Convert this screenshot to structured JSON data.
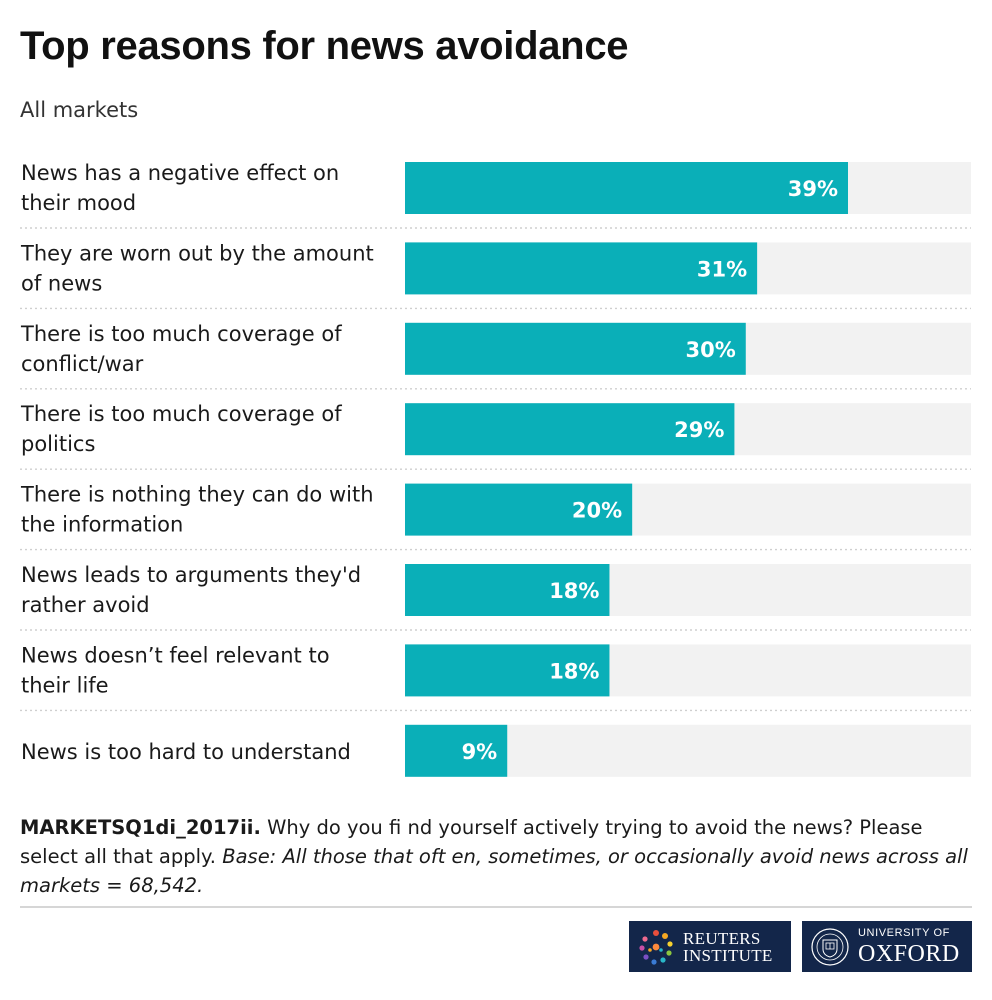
{
  "header": {
    "title": "Top reasons for news avoidance",
    "subtitle": "All markets"
  },
  "chart_data": {
    "type": "bar",
    "orientation": "horizontal",
    "categories": [
      "News has a negative effect on their mood",
      "They are worn out by the amount of news",
      "There is too much coverage of conflict/war",
      "There is too much coverage of politics",
      "There is nothing they can do with the information",
      "News leads to arguments they'd rather avoid",
      "News doesn’t feel relevant to their life",
      "News is too hard to understand"
    ],
    "label_lines": [
      [
        "News has a negative effect on",
        "their mood"
      ],
      [
        "They are worn out by the amount",
        "of news"
      ],
      [
        "There is too much coverage of",
        "conflict/war"
      ],
      [
        "There is too much coverage of",
        "politics"
      ],
      [
        "There is nothing they can do with",
        "the information"
      ],
      [
        "News leads to arguments they'd",
        "rather avoid"
      ],
      [
        "News doesn’t feel relevant to",
        "their life"
      ],
      [
        "News is too hard to understand"
      ]
    ],
    "values": [
      39,
      31,
      30,
      29,
      20,
      18,
      18,
      9
    ],
    "value_labels": [
      "39%",
      "31%",
      "30%",
      "29%",
      "20%",
      "18%",
      "18%",
      "9%"
    ],
    "xlim": [
      0,
      50
    ],
    "bar_color": "#0aafb8",
    "track_color": "#f2f2f2",
    "separator_color": "#cfcfcf",
    "grid": false,
    "legend": "none"
  },
  "note": {
    "code": "MARKETSQ1di_2017ii.",
    "question": "Why do you fi nd yourself actively trying to avoid the news? Please select all that apply.",
    "base": "Base: All those that oft en, sometimes, or occasionally avoid news across all markets = 68,542."
  },
  "logos": {
    "reuters": [
      "REUTERS",
      "INSTITUTE"
    ],
    "oxford_small": "UNIVERSITY OF",
    "oxford_big": "OXFORD",
    "background": "#13264a"
  }
}
